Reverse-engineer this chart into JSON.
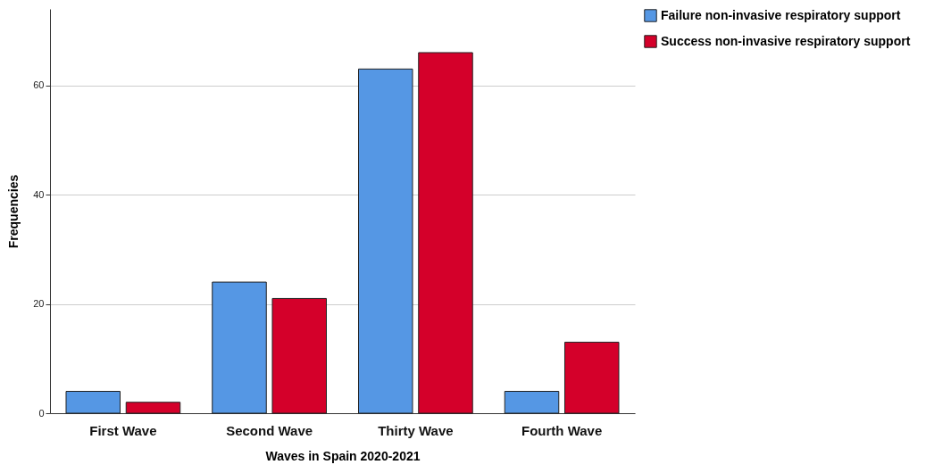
{
  "chart_data": {
    "type": "bar",
    "xlabel": "Waves in Spain 2020-2021",
    "ylabel": "Frequencies",
    "categories": [
      "First Wave",
      "Second Wave",
      "Thirty Wave",
      "Fourth Wave"
    ],
    "series": [
      {
        "name": "Failure non-invasive respiratory support",
        "color": "#5597e4",
        "values": [
          4,
          24,
          63,
          4
        ]
      },
      {
        "name": "Success non-invasive respiratory support",
        "color": "#d4002a",
        "values": [
          2,
          21,
          66,
          13
        ]
      }
    ],
    "ylim": [
      0,
      74
    ],
    "yticks": [
      0,
      20,
      40,
      60
    ],
    "grid": "y",
    "legend": "top right"
  }
}
